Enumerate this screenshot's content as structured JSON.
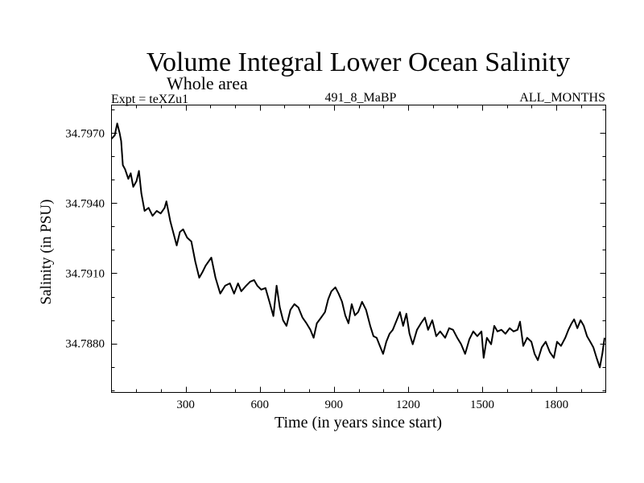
{
  "chart_data": {
    "type": "line",
    "title": "Volume Integral Lower Ocean Salinity",
    "subtitle": "Whole area",
    "annotations": {
      "left": "Expt = teXZu1",
      "center": "491_8_MaBP",
      "right": "ALL_MONTHS"
    },
    "xlabel": "Time (in years since start)",
    "ylabel": "Salinity (in PSU)",
    "xlim": [
      0,
      2000
    ],
    "ylim": [
      34.7859,
      34.7982
    ],
    "x_ticks_major": [
      300,
      600,
      900,
      1200,
      1500,
      1800
    ],
    "x_tick_labels": [
      "300",
      "600",
      "900",
      "1200",
      "1500",
      "1800"
    ],
    "x_ticks_minor_step": 100,
    "y_ticks_major": [
      34.797,
      34.794,
      34.791,
      34.788
    ],
    "y_tick_labels": [
      "34.7970",
      "34.7940",
      "34.7910",
      "34.7880"
    ],
    "y_ticks_minor_step": 0.001,
    "grid": false,
    "line_color": "#000000",
    "series": [
      {
        "name": "Salinity",
        "x": [
          0,
          13,
          23,
          33,
          39,
          46,
          55,
          68,
          78,
          88,
          101,
          111,
          121,
          134,
          150,
          166,
          183,
          199,
          215,
          222,
          238,
          251,
          264,
          277,
          290,
          306,
          323,
          339,
          355,
          368,
          381,
          404,
          421,
          440,
          460,
          479,
          496,
          512,
          525,
          545,
          561,
          577,
          590,
          606,
          623,
          639,
          655,
          668,
          681,
          694,
          708,
          724,
          740,
          756,
          773,
          789,
          805,
          818,
          831,
          848,
          864,
          877,
          890,
          906,
          919,
          933,
          946,
          959,
          972,
          985,
          998,
          1014,
          1030,
          1047,
          1060,
          1073,
          1086,
          1099,
          1112,
          1125,
          1138,
          1154,
          1167,
          1180,
          1193,
          1206,
          1219,
          1236,
          1252,
          1268,
          1281,
          1298,
          1314,
          1330,
          1350,
          1366,
          1382,
          1399,
          1415,
          1431,
          1448,
          1464,
          1480,
          1497,
          1506,
          1519,
          1536,
          1549,
          1562,
          1578,
          1594,
          1611,
          1627,
          1643,
          1653,
          1666,
          1682,
          1699,
          1712,
          1725,
          1741,
          1757,
          1774,
          1790,
          1803,
          1819,
          1836,
          1849,
          1862,
          1872,
          1885,
          1898,
          1911,
          1924,
          1937,
          1950,
          1963,
          1976,
          1986,
          1995
        ],
        "y": [
          34.79676,
          34.7969,
          34.79741,
          34.797,
          34.79666,
          34.79563,
          34.79545,
          34.79504,
          34.79528,
          34.7947,
          34.79494,
          34.79538,
          34.79442,
          34.79367,
          34.7938,
          34.79346,
          34.79367,
          34.79356,
          34.7938,
          34.79408,
          34.79322,
          34.7927,
          34.79219,
          34.79277,
          34.79288,
          34.79253,
          34.79236,
          34.7915,
          34.79081,
          34.79105,
          34.79133,
          34.79167,
          34.79081,
          34.79013,
          34.79047,
          34.79057,
          34.79013,
          34.79057,
          34.79023,
          34.79047,
          34.79064,
          34.79071,
          34.79047,
          34.7903,
          34.79037,
          34.78978,
          34.78917,
          34.79047,
          34.78954,
          34.78899,
          34.78875,
          34.78944,
          34.78968,
          34.78954,
          34.7891,
          34.78886,
          34.78858,
          34.78824,
          34.78886,
          34.7891,
          34.78934,
          34.78989,
          34.79023,
          34.7904,
          34.79013,
          34.78978,
          34.7892,
          34.78886,
          34.78968,
          34.7892,
          34.78934,
          34.78978,
          34.78944,
          34.78875,
          34.78831,
          34.78824,
          34.78789,
          34.78755,
          34.78807,
          34.78841,
          34.78858,
          34.78899,
          34.78934,
          34.78875,
          34.78927,
          34.78841,
          34.78796,
          34.78858,
          34.78886,
          34.7891,
          34.78858,
          34.78899,
          34.78831,
          34.78851,
          34.78824,
          34.78865,
          34.78858,
          34.78824,
          34.78796,
          34.78755,
          34.78817,
          34.78851,
          34.78831,
          34.78851,
          34.78738,
          34.78824,
          34.78796,
          34.78875,
          34.78851,
          34.78858,
          34.78841,
          34.78865,
          34.78851,
          34.78858,
          34.78893,
          34.78789,
          34.78824,
          34.78807,
          34.78755,
          34.78728,
          34.78783,
          34.78807,
          34.78762,
          34.78738,
          34.78807,
          34.78789,
          34.78824,
          34.78858,
          34.78886,
          34.78903,
          34.78865,
          34.78899,
          34.78875,
          34.78831,
          34.78807,
          34.78783,
          34.78738,
          34.78697,
          34.78755,
          34.78824
        ]
      }
    ]
  }
}
